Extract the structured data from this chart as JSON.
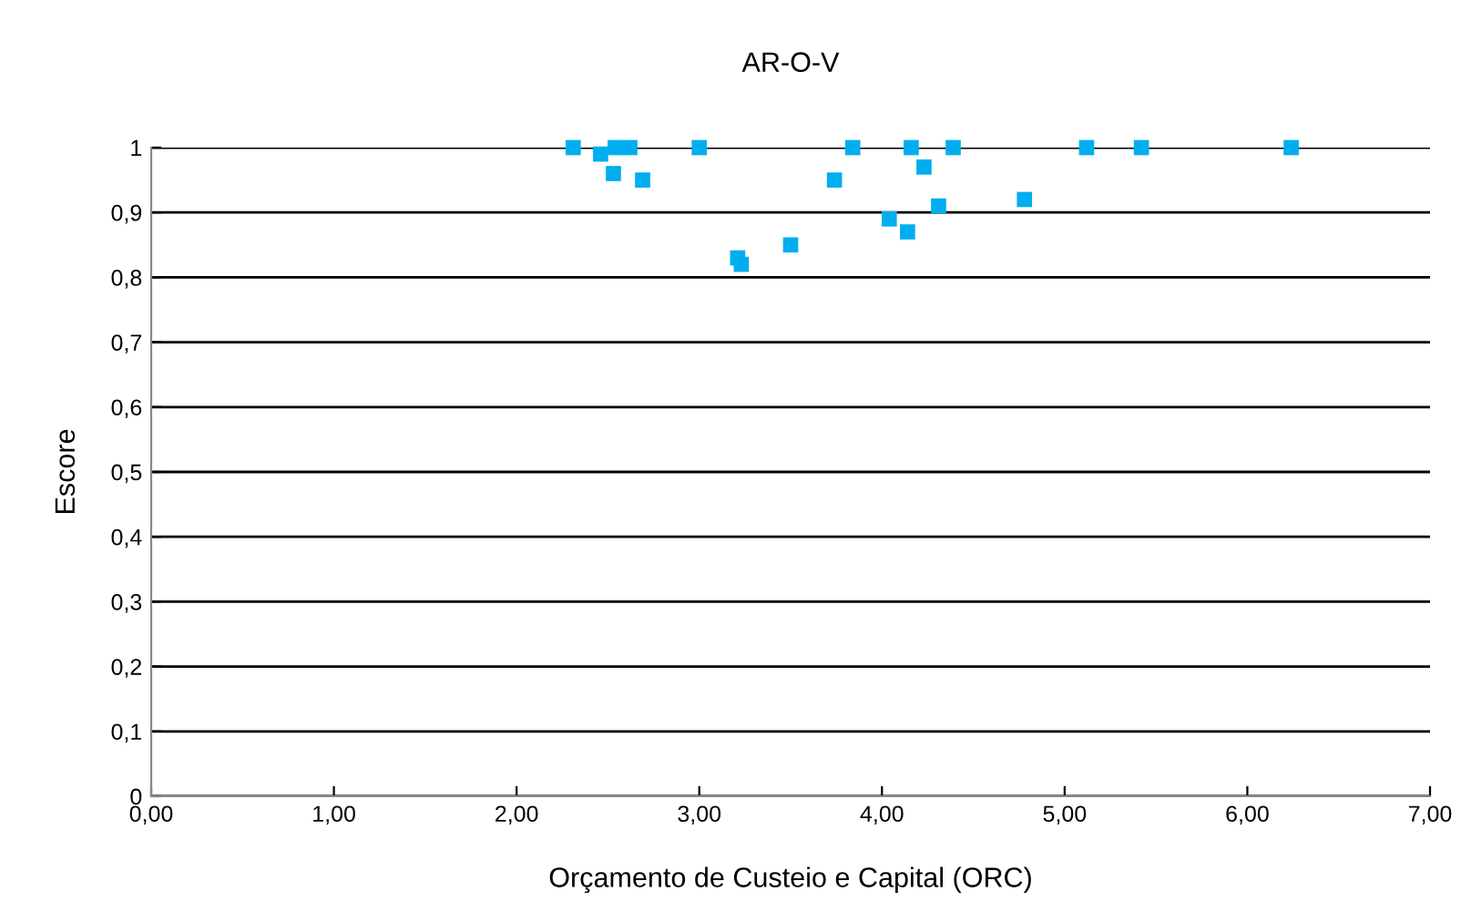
{
  "chart_data": {
    "type": "scatter",
    "title": "AR-O-V",
    "xlabel": "Orçamento de Custeio e Capital (ORC)",
    "ylabel": "Escore",
    "x": [
      2.31,
      2.46,
      2.54,
      2.62,
      2.53,
      2.69,
      3.0,
      3.21,
      3.23,
      3.5,
      3.74,
      3.84,
      4.04,
      4.14,
      4.16,
      4.23,
      4.31,
      4.39,
      4.78,
      5.12,
      5.42,
      6.24
    ],
    "values": [
      1.0,
      0.99,
      1.0,
      1.0,
      0.96,
      0.95,
      1.0,
      0.83,
      0.82,
      0.85,
      0.95,
      1.0,
      0.89,
      0.87,
      1.0,
      0.97,
      0.91,
      1.0,
      0.92,
      1.0,
      1.0,
      1.0
    ],
    "color": "#00aeef",
    "marker": "square",
    "grid": "y",
    "xlim": [
      0,
      7
    ],
    "xticks": [
      {
        "value": 0,
        "label": "0,00"
      },
      {
        "value": 1,
        "label": "1,00"
      },
      {
        "value": 2,
        "label": "2,00"
      },
      {
        "value": 3,
        "label": "3,00"
      },
      {
        "value": 4,
        "label": "4,00"
      },
      {
        "value": 5,
        "label": "5,00"
      },
      {
        "value": 6,
        "label": "6,00"
      },
      {
        "value": 7,
        "label": "7,00"
      }
    ],
    "ylim": [
      0,
      1
    ],
    "yticks": [
      0,
      {
        "value": 0.1,
        "label": "0,1"
      },
      {
        "value": 0.2,
        "label": "0,2"
      },
      {
        "value": 0.3,
        "label": "0,3"
      },
      {
        "value": 0.4,
        "label": "0,4"
      },
      {
        "value": 0.5,
        "label": "0,5"
      },
      {
        "value": 0.6,
        "label": "0,6"
      },
      {
        "value": 0.7,
        "label": "0,7"
      },
      {
        "value": 0.8,
        "label": "0,8"
      },
      {
        "value": 0.9,
        "label": "0,9"
      },
      1
    ]
  }
}
